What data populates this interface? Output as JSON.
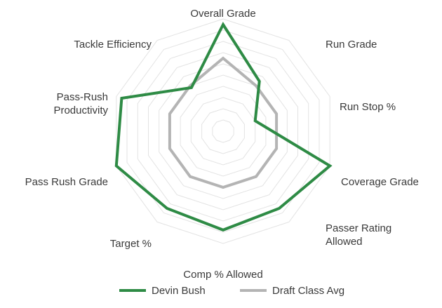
{
  "chart_data": {
    "type": "radar",
    "categories": [
      "Overall Grade",
      "Run Grade",
      "Run Stop %",
      "Coverage Grade",
      "Passer Rating\nAllowed",
      "Comp % Allowed",
      "Target %",
      "Pass Rush Grade",
      "Pass-Rush\nProductivity",
      "Tackle Efficiency"
    ],
    "rlim": [
      0,
      10
    ],
    "rings": 10,
    "grid": true,
    "legend_position": "bottom",
    "series": [
      {
        "name": "Devin Bush",
        "values": [
          9.5,
          5.5,
          3.0,
          10.0,
          8.5,
          8.8,
          8.5,
          10.0,
          9.5,
          4.8
        ],
        "color": "#2e8b45"
      },
      {
        "name": "Draft Class Avg",
        "values": [
          6.5,
          5.0,
          5.0,
          5.0,
          5.0,
          5.0,
          5.0,
          5.0,
          5.0,
          5.0
        ],
        "color": "#b4b4b4"
      }
    ]
  }
}
